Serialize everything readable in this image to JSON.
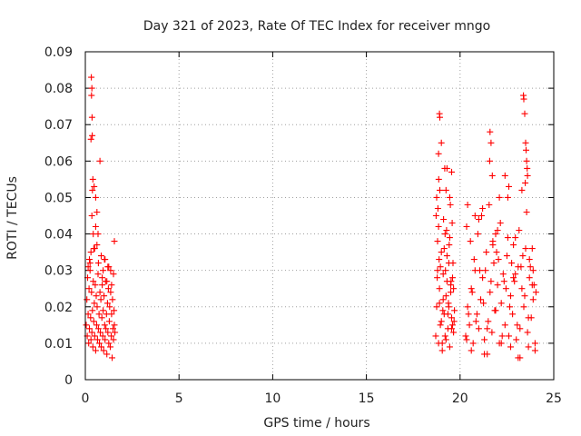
{
  "chart_data": {
    "type": "scatter",
    "title": "Day 321 of 2023, Rate Of TEC Index for receiver mngo",
    "xlabel": "GPS time / hours",
    "ylabel": "ROTI / TECUs",
    "xlim": [
      0,
      25
    ],
    "ylim": [
      0,
      0.09
    ],
    "xticks": [
      "0",
      "5",
      "10",
      "15",
      "20",
      "25"
    ],
    "yticks": [
      "0",
      "0.01",
      "0.02",
      "0.03",
      "0.04",
      "0.05",
      "0.06",
      "0.07",
      "0.08",
      "0.09"
    ],
    "grid": true,
    "marker": "+",
    "color": "#ff0000",
    "series": [
      {
        "name": "ROTI",
        "x": [
          0.05,
          0.08,
          0.1,
          0.12,
          0.15,
          0.18,
          0.2,
          0.22,
          0.25,
          0.28,
          0.3,
          0.33,
          0.35,
          0.38,
          0.4,
          0.42,
          0.45,
          0.48,
          0.5,
          0.53,
          0.55,
          0.58,
          0.6,
          0.63,
          0.65,
          0.68,
          0.7,
          0.73,
          0.75,
          0.78,
          0.8,
          0.83,
          0.85,
          0.88,
          0.9,
          0.93,
          0.95,
          0.98,
          1.0,
          1.03,
          1.05,
          1.08,
          1.1,
          1.13,
          1.15,
          1.18,
          1.2,
          1.23,
          1.25,
          1.28,
          1.3,
          1.33,
          1.35,
          1.38,
          1.4,
          1.43,
          1.45,
          1.48,
          1.5,
          1.53,
          1.55,
          1.58,
          0.15,
          0.22,
          0.3,
          0.35,
          0.38,
          0.42,
          0.45,
          0.55,
          0.62,
          0.7,
          0.85,
          0.95,
          1.05,
          1.2,
          1.35,
          1.5,
          0.32,
          0.35,
          0.33,
          0.36,
          0.3,
          0.37,
          0.78,
          0.55,
          0.4,
          0.62,
          0.25,
          0.9,
          1.15,
          1.4,
          1.55,
          0.68,
          0.5,
          0.47,
          1.25,
          1.02,
          18.7,
          18.75,
          18.8,
          18.85,
          18.9,
          18.95,
          19.0,
          19.05,
          19.1,
          19.15,
          19.2,
          19.25,
          19.3,
          19.35,
          19.4,
          19.45,
          19.5,
          19.55,
          19.6,
          19.65,
          19.7,
          18.72,
          18.8,
          18.9,
          19.0,
          19.1,
          19.2,
          19.3,
          19.4,
          19.5,
          19.6,
          18.75,
          18.85,
          18.95,
          19.05,
          19.15,
          19.25,
          19.35,
          19.45,
          19.55,
          19.65,
          18.82,
          18.88,
          19.12,
          19.28,
          19.42,
          19.58,
          18.78,
          18.92,
          19.08,
          19.22,
          19.38,
          19.52,
          19.68,
          18.86,
          19.18,
          19.48,
          19.62,
          18.9,
          18.92,
          19.0,
          19.3,
          19.55,
          18.85,
          19.45,
          19.25,
          20.3,
          20.4,
          20.5,
          20.6,
          20.7,
          20.8,
          20.9,
          21.0,
          21.1,
          21.2,
          21.3,
          21.4,
          21.5,
          21.6,
          21.7,
          21.8,
          21.9,
          22.0,
          22.1,
          22.2,
          22.3,
          22.4,
          22.5,
          22.6,
          22.7,
          22.8,
          22.9,
          23.0,
          23.1,
          23.2,
          23.3,
          23.4,
          23.5,
          23.6,
          23.7,
          23.8,
          23.9,
          24.0,
          24.05,
          20.35,
          20.55,
          20.75,
          20.95,
          21.15,
          21.35,
          21.55,
          21.75,
          21.95,
          22.15,
          22.35,
          22.55,
          22.75,
          22.95,
          23.15,
          23.35,
          23.55,
          23.75,
          23.95,
          20.45,
          20.65,
          20.85,
          21.05,
          21.25,
          21.45,
          21.65,
          21.85,
          22.05,
          22.25,
          22.45,
          22.65,
          22.85,
          23.05,
          23.25,
          23.45,
          23.65,
          23.85,
          21.6,
          21.65,
          21.58,
          21.72,
          22.4,
          23.38,
          23.4,
          23.45,
          23.5,
          23.52,
          23.55,
          23.6,
          22.6,
          20.4,
          21.0,
          21.9,
          22.1,
          22.85,
          23.7,
          23.9,
          20.6,
          21.3,
          22.7,
          23.2,
          24.0,
          20.35,
          21.45,
          22.2,
          23.1,
          23.65,
          20.8,
          21.75,
          22.55,
          23.3,
          23.85,
          21.2,
          22.0,
          22.95,
          23.48,
          23.58
        ],
        "y": [
          0.015,
          0.022,
          0.012,
          0.028,
          0.018,
          0.01,
          0.025,
          0.014,
          0.03,
          0.017,
          0.011,
          0.024,
          0.013,
          0.019,
          0.009,
          0.027,
          0.016,
          0.021,
          0.012,
          0.026,
          0.008,
          0.023,
          0.015,
          0.02,
          0.011,
          0.029,
          0.014,
          0.018,
          0.01,
          0.024,
          0.013,
          0.022,
          0.009,
          0.017,
          0.026,
          0.012,
          0.019,
          0.008,
          0.023,
          0.015,
          0.011,
          0.027,
          0.014,
          0.018,
          0.007,
          0.021,
          0.013,
          0.025,
          0.01,
          0.016,
          0.02,
          0.009,
          0.024,
          0.012,
          0.018,
          0.006,
          0.022,
          0.014,
          0.011,
          0.019,
          0.015,
          0.013,
          0.031,
          0.033,
          0.035,
          0.045,
          0.052,
          0.04,
          0.036,
          0.042,
          0.037,
          0.032,
          0.034,
          0.03,
          0.033,
          0.031,
          0.03,
          0.029,
          0.083,
          0.08,
          0.078,
          0.072,
          0.066,
          0.067,
          0.06,
          0.05,
          0.055,
          0.046,
          0.032,
          0.028,
          0.027,
          0.026,
          0.038,
          0.04,
          0.036,
          0.053,
          0.031,
          0.033,
          0.012,
          0.02,
          0.03,
          0.01,
          0.025,
          0.015,
          0.035,
          0.008,
          0.022,
          0.018,
          0.04,
          0.011,
          0.027,
          0.014,
          0.032,
          0.009,
          0.024,
          0.017,
          0.028,
          0.013,
          0.019,
          0.045,
          0.038,
          0.021,
          0.016,
          0.029,
          0.012,
          0.034,
          0.02,
          0.026,
          0.015,
          0.05,
          0.042,
          0.031,
          0.01,
          0.036,
          0.023,
          0.018,
          0.039,
          0.014,
          0.025,
          0.047,
          0.033,
          0.044,
          0.041,
          0.037,
          0.043,
          0.028,
          0.052,
          0.019,
          0.03,
          0.021,
          0.027,
          0.016,
          0.055,
          0.058,
          0.048,
          0.032,
          0.073,
          0.072,
          0.065,
          0.058,
          0.057,
          0.062,
          0.05,
          0.052,
          0.012,
          0.02,
          0.015,
          0.025,
          0.01,
          0.03,
          0.018,
          0.014,
          0.022,
          0.028,
          0.011,
          0.035,
          0.016,
          0.024,
          0.013,
          0.032,
          0.019,
          0.026,
          0.01,
          0.021,
          0.029,
          0.015,
          0.034,
          0.012,
          0.023,
          0.018,
          0.027,
          0.011,
          0.031,
          0.014,
          0.025,
          0.02,
          0.036,
          0.013,
          0.028,
          0.017,
          0.022,
          0.01,
          0.024,
          0.042,
          0.038,
          0.033,
          0.04,
          0.045,
          0.03,
          0.048,
          0.037,
          0.035,
          0.043,
          0.027,
          0.039,
          0.032,
          0.029,
          0.041,
          0.034,
          0.046,
          0.031,
          0.026,
          0.018,
          0.024,
          0.016,
          0.03,
          0.021,
          0.014,
          0.027,
          0.019,
          0.033,
          0.012,
          0.025,
          0.02,
          0.028,
          0.015,
          0.031,
          0.023,
          0.017,
          0.026,
          0.068,
          0.065,
          0.06,
          0.056,
          0.056,
          0.078,
          0.077,
          0.073,
          0.065,
          0.063,
          0.06,
          0.056,
          0.053,
          0.048,
          0.044,
          0.04,
          0.05,
          0.037,
          0.033,
          0.03,
          0.008,
          0.007,
          0.009,
          0.006,
          0.008,
          0.011,
          0.007,
          0.01,
          0.006,
          0.009,
          0.045,
          0.038,
          0.05,
          0.052,
          0.036,
          0.047,
          0.041,
          0.039,
          0.054,
          0.058
        ]
      }
    ]
  }
}
